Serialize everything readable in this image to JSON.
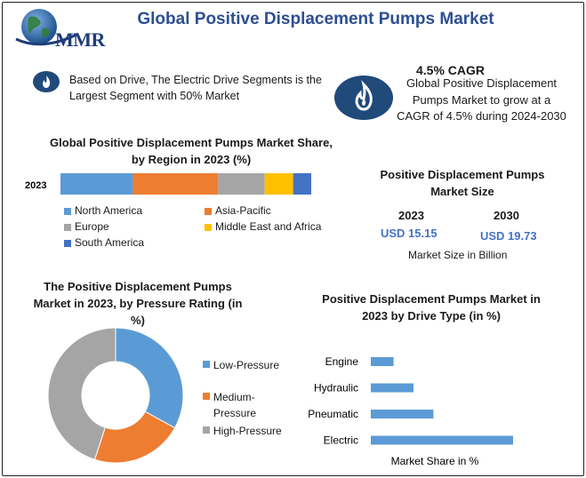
{
  "header": {
    "logo_text": "MMR",
    "title": "Global Positive Displacement Pumps Market"
  },
  "facts": {
    "drive": "Based on Drive, The Electric Drive Segments is the Largest Segment with 50% Market",
    "cagr_title": "4.5% CAGR",
    "cagr_text": "Global Positive Displacement Pumps Market to grow at a CAGR of 4.5% during 2024-2030"
  },
  "market_size": {
    "title": "Positive Displacement Pumps Market Size",
    "year1": "2023",
    "value1": "USD 15.15",
    "year2": "2030",
    "value2": "USD 19.73",
    "unit": "Market Size in Billion"
  },
  "colors": {
    "blue": "#5b9bd5",
    "orange": "#ed7d31",
    "gray": "#a5a5a5",
    "yellow": "#ffc000",
    "darkblue": "#4472c4",
    "icon": "#1f4a7a",
    "title": "#2d4f91"
  },
  "icons": [
    "globe-logo-icon",
    "flame-icon"
  ],
  "chart_data": [
    {
      "type": "bar",
      "orientation": "horizontal-stacked",
      "title": "Global Positive Displacement Pumps Market Share, by Region in 2023 (%)",
      "categories": [
        "2023"
      ],
      "series": [
        {
          "name": "North America",
          "values": [
            28
          ]
        },
        {
          "name": "Asia-Pacific",
          "values": [
            33
          ]
        },
        {
          "name": "Europe",
          "values": [
            18
          ]
        },
        {
          "name": "Middle East and Africa",
          "values": [
            11
          ]
        },
        {
          "name": "South America",
          "values": [
            7
          ]
        }
      ],
      "legend": "bottom"
    },
    {
      "type": "pie",
      "variant": "donut",
      "title": "The Positive Displacement Pumps Market in 2023, by Pressure Rating (in %)",
      "labels": [
        "Low-Pressure",
        "Medium-Pressure",
        "High-Pressure"
      ],
      "values": [
        33,
        22,
        45
      ],
      "legend": "right"
    },
    {
      "type": "bar",
      "orientation": "horizontal",
      "title": "Positive Displacement Pumps Market in 2023 by Drive Type (in %)",
      "categories": [
        "Engine",
        "Hydraulic",
        "Pneumatic",
        "Electric"
      ],
      "values": [
        8,
        15,
        22,
        50
      ],
      "xlabel": "Market Share in %",
      "xlim": [
        0,
        50
      ]
    }
  ]
}
